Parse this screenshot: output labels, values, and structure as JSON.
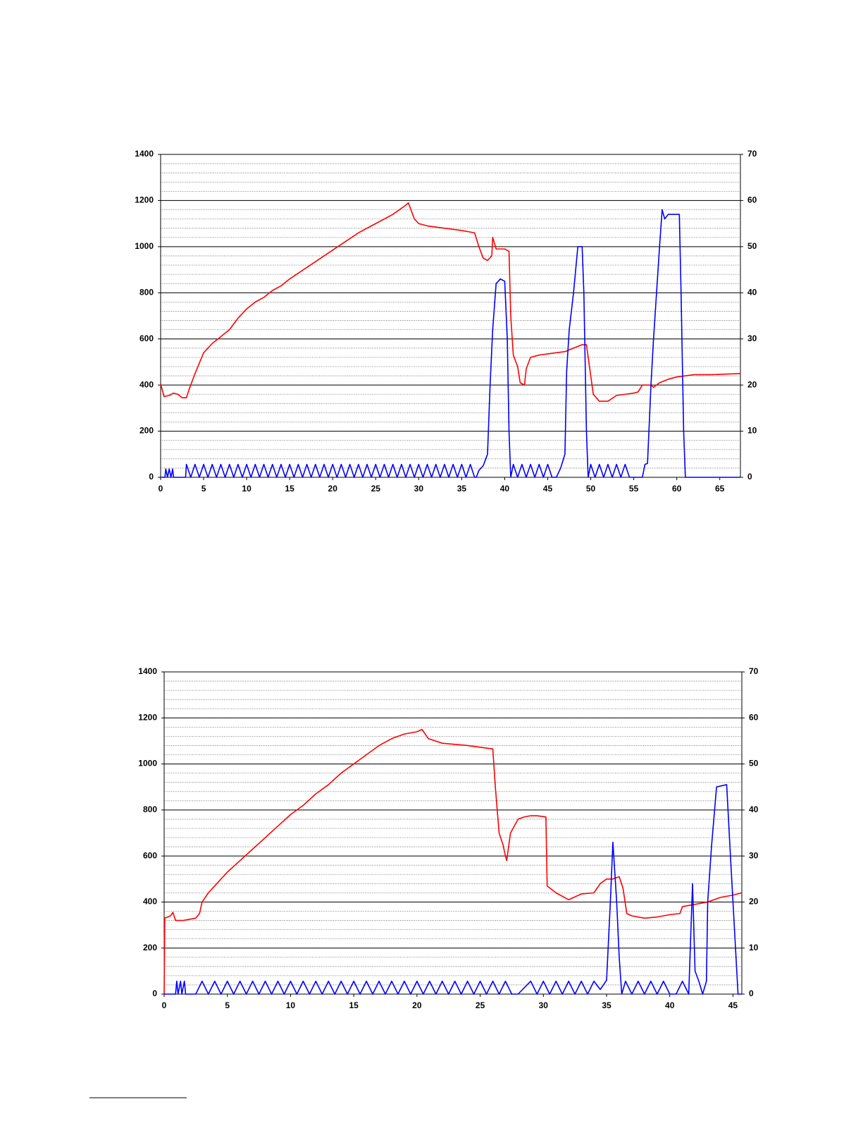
{
  "chart_data": [
    {
      "type": "line",
      "xlim": [
        0,
        67.4
      ],
      "xticks": [
        0,
        5,
        10,
        15,
        20,
        25,
        30,
        35,
        40,
        45,
        50,
        55,
        60,
        65
      ],
      "ylim": [
        0,
        1400
      ],
      "yticks": [
        0,
        200,
        400,
        600,
        800,
        1000,
        1200,
        1400
      ],
      "y2lim": [
        0,
        70
      ],
      "y2ticks": [
        0,
        10,
        20,
        30,
        40,
        50,
        60,
        70
      ],
      "grid": true,
      "minor_grid": 40,
      "series": [
        {
          "color": "#ff0000",
          "axis": "y",
          "x": [
            0,
            0.4,
            1,
            1.5,
            2,
            2.5,
            3,
            3.3,
            3.6,
            4,
            5,
            6,
            7,
            8,
            9,
            10,
            11,
            12,
            13,
            14,
            15,
            17,
            19,
            21,
            23,
            25,
            27,
            28.5,
            28.8,
            29.5,
            30,
            31,
            33,
            35,
            36.5,
            37,
            37.5,
            38,
            38.5,
            38.6,
            39,
            40,
            40.5,
            40.7,
            41,
            41.5,
            41.8,
            42.3,
            42.5,
            43,
            44,
            45,
            46,
            47,
            48,
            49,
            49.5,
            50,
            50.3,
            51,
            52,
            53,
            55,
            55.5,
            56,
            57,
            57.3,
            58,
            59,
            60,
            61,
            62,
            64,
            67.4
          ],
          "values": [
            405,
            350,
            355,
            365,
            360,
            345,
            345,
            380,
            410,
            450,
            540,
            580,
            610,
            640,
            690,
            730,
            760,
            780,
            810,
            830,
            860,
            910,
            960,
            1010,
            1060,
            1100,
            1140,
            1180,
            1190,
            1120,
            1100,
            1090,
            1080,
            1070,
            1060,
            1000,
            950,
            940,
            960,
            1040,
            990,
            990,
            980,
            700,
            530,
            480,
            410,
            400,
            470,
            520,
            530,
            535,
            540,
            545,
            560,
            575,
            575,
            440,
            360,
            330,
            330,
            355,
            365,
            370,
            400,
            400,
            390,
            410,
            425,
            435,
            440,
            445,
            445,
            450
          ]
        },
        {
          "color": "#0000ff",
          "axis": "y2",
          "x": [
            0,
            0.5,
            0.6,
            0.8,
            1,
            1.2,
            1.4,
            1.5,
            2.9,
            3,
            3.5,
            4,
            4.5,
            5,
            5.5,
            6,
            6.5,
            7,
            7.5,
            8,
            8.5,
            9,
            9.5,
            10,
            10.5,
            11,
            11.5,
            12,
            12.5,
            13,
            13.5,
            14,
            14.5,
            15,
            15.5,
            16,
            16.5,
            17,
            17.5,
            18,
            18.5,
            19,
            19.5,
            20,
            20.5,
            21,
            21.5,
            22,
            22.5,
            23,
            23.5,
            24,
            24.5,
            25,
            25.5,
            26,
            26.5,
            27,
            27.5,
            28,
            28.5,
            29,
            29.5,
            30,
            30.5,
            31,
            31.5,
            32,
            32.5,
            33,
            33.5,
            34,
            34.5,
            35,
            35.5,
            36,
            36.5,
            36.7,
            37,
            37.5,
            38,
            38.3,
            38.6,
            39,
            39.5,
            40,
            40.3,
            40.5,
            40.7,
            41,
            41.5,
            42,
            42.5,
            43,
            43.5,
            44,
            44.5,
            45,
            45.5,
            46,
            46.5,
            47,
            47.2,
            47.5,
            48,
            48.5,
            49,
            49.2,
            49.5,
            49.7,
            50,
            50.5,
            51,
            51.5,
            52,
            52.5,
            53,
            53.5,
            54,
            54.5,
            55,
            56,
            56.3,
            56.6,
            57,
            57.3,
            58,
            58.3,
            58.6,
            59,
            60,
            60.3,
            60.5,
            60.8,
            61,
            67.4
          ],
          "values": [
            0,
            0,
            1.8,
            0,
            1.8,
            0,
            1.8,
            0,
            0,
            2.8,
            0,
            2.8,
            0,
            2.8,
            0,
            2.8,
            0,
            2.8,
            0,
            2.8,
            0,
            2.8,
            0,
            2.8,
            0,
            2.8,
            0,
            2.8,
            0,
            2.8,
            0,
            2.8,
            0,
            2.8,
            0,
            2.8,
            0,
            2.8,
            0,
            2.8,
            0,
            2.8,
            0,
            2.8,
            0,
            2.8,
            0,
            2.8,
            0,
            2.8,
            0,
            2.8,
            0,
            2.8,
            0,
            2.8,
            0,
            2.8,
            0,
            2.8,
            0,
            2.8,
            0,
            2.8,
            0,
            2.8,
            0,
            2.8,
            0,
            2.8,
            0,
            2.8,
            0,
            2.8,
            0,
            2.8,
            0,
            0,
            1.5,
            2.5,
            5,
            20,
            32,
            42,
            43,
            42.5,
            30,
            10,
            0,
            2.8,
            0,
            2.8,
            0,
            2.8,
            0,
            2.8,
            0,
            2.8,
            0,
            0,
            2,
            5,
            23,
            32,
            40,
            50,
            50,
            40,
            10,
            0,
            2.8,
            0,
            2.8,
            0,
            2.8,
            0,
            2.8,
            0,
            2.8,
            0,
            0,
            0,
            2.8,
            3,
            20,
            30,
            50,
            58,
            56,
            57,
            57,
            57,
            40,
            10,
            0,
            0
          ]
        }
      ]
    },
    {
      "type": "line",
      "xlim": [
        0,
        45.7
      ],
      "xticks": [
        0,
        5,
        10,
        15,
        20,
        25,
        30,
        35,
        40,
        45
      ],
      "ylim": [
        0,
        1400
      ],
      "yticks": [
        0,
        200,
        400,
        600,
        800,
        1000,
        1200,
        1400
      ],
      "y2lim": [
        0,
        70
      ],
      "y2ticks": [
        0,
        10,
        20,
        30,
        40,
        50,
        60,
        70
      ],
      "grid": true,
      "minor_grid": 40,
      "series": [
        {
          "color": "#ff0000",
          "axis": "y",
          "x": [
            0,
            0.05,
            0.5,
            0.7,
            0.9,
            1.5,
            2,
            2.5,
            2.8,
            3,
            3.5,
            4,
            5,
            6,
            7,
            8,
            9,
            10,
            11,
            12,
            13,
            14,
            15,
            16,
            17,
            18,
            19,
            20,
            20.4,
            20.9,
            22,
            24,
            26,
            26.2,
            26.5,
            26.8,
            27,
            27.1,
            27.4,
            28,
            28.5,
            29,
            29.5,
            30.2,
            30.3,
            31,
            32,
            33,
            34,
            34.5,
            35,
            35.5,
            36,
            36.3,
            36.6,
            37,
            38,
            39,
            40,
            40.8,
            41,
            42,
            43,
            44,
            45,
            45.7
          ],
          "values": [
            0,
            330,
            340,
            355,
            320,
            320,
            325,
            330,
            350,
            400,
            440,
            470,
            530,
            580,
            630,
            680,
            730,
            780,
            820,
            870,
            910,
            960,
            1000,
            1040,
            1080,
            1110,
            1130,
            1140,
            1150,
            1110,
            1090,
            1080,
            1065,
            900,
            700,
            650,
            600,
            580,
            700,
            760,
            770,
            775,
            775,
            770,
            470,
            440,
            410,
            435,
            440,
            480,
            500,
            500,
            510,
            460,
            350,
            340,
            330,
            335,
            345,
            350,
            380,
            390,
            400,
            420,
            430,
            440
          ]
        },
        {
          "color": "#0000ff",
          "axis": "y2",
          "x": [
            0,
            0.9,
            1,
            1.1,
            1.3,
            1.4,
            1.6,
            1.7,
            2.5,
            3,
            3.5,
            4,
            4.5,
            5,
            5.5,
            6,
            6.5,
            7,
            7.5,
            8,
            8.5,
            9,
            9.5,
            10,
            10.5,
            11,
            11.5,
            12,
            12.5,
            13,
            13.5,
            14,
            14.5,
            15,
            15.5,
            16,
            16.5,
            17,
            17.5,
            18,
            18.5,
            19,
            19.5,
            20,
            20.5,
            21,
            21.5,
            22,
            22.5,
            23,
            23.5,
            24,
            24.5,
            25,
            25.5,
            26,
            26.5,
            27,
            27.5,
            28,
            29,
            29.5,
            30,
            30.5,
            31,
            31.5,
            32,
            32.5,
            33,
            33.5,
            34,
            34.5,
            35,
            35.3,
            35.5,
            35.8,
            36,
            36.2,
            36.5,
            37,
            37.5,
            38,
            38.5,
            39,
            39.5,
            40,
            40.5,
            41,
            41.5,
            41.8,
            42,
            42.3,
            42.6,
            42.9,
            43,
            43.3,
            43.7,
            44.5,
            44.8,
            45.2,
            45.4,
            45.7
          ],
          "values": [
            0,
            0,
            2.8,
            0,
            2.8,
            0,
            2.8,
            0,
            0,
            2.8,
            0,
            2.8,
            0,
            2.8,
            0,
            2.8,
            0,
            2.8,
            0,
            2.8,
            0,
            2.8,
            0,
            2.8,
            0,
            2.8,
            0,
            2.8,
            0,
            2.8,
            0,
            2.8,
            0,
            2.8,
            0,
            2.8,
            0,
            2.8,
            0,
            2.8,
            0,
            2.8,
            0,
            2.8,
            0,
            2.8,
            0,
            2.8,
            0,
            2.8,
            0,
            2.8,
            0,
            2.8,
            0,
            2.8,
            0,
            2.8,
            0,
            0,
            2.8,
            0,
            2.8,
            0,
            2.8,
            0,
            2.8,
            0,
            2.8,
            0,
            2.8,
            1,
            3,
            20,
            33,
            20,
            8,
            0,
            2.8,
            0,
            2.8,
            0,
            2.8,
            0,
            2.8,
            0,
            0,
            2.8,
            0,
            24,
            5,
            2.8,
            0,
            2.8,
            20,
            32,
            45,
            45.5,
            30,
            10,
            0,
            0
          ]
        }
      ]
    }
  ]
}
